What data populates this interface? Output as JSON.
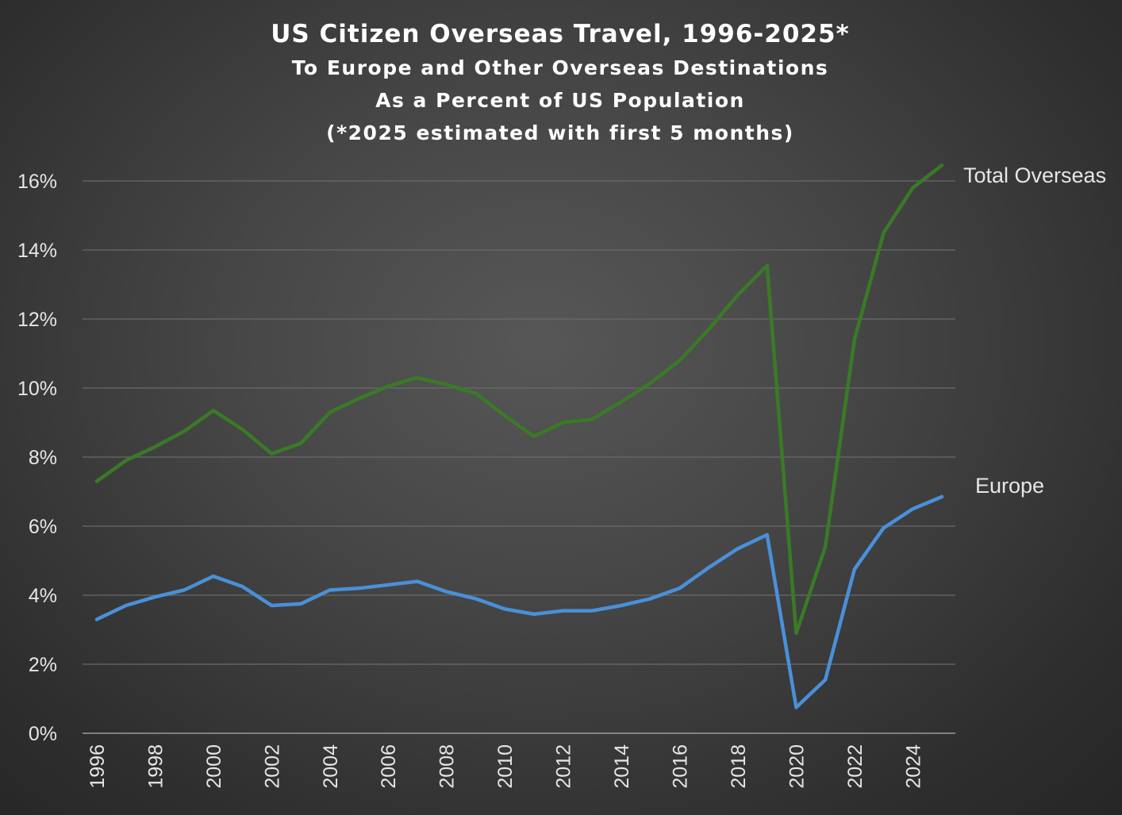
{
  "chart_data": {
    "type": "line",
    "title": "US Citizen Overseas Travel, 1996-2025*",
    "subtitle": [
      "To Europe and Other Overseas Destinations",
      "As a Percent of US Population",
      "(*2025 estimated with first 5 months)"
    ],
    "xlabel": "",
    "ylabel": "",
    "x": [
      1996,
      1997,
      1998,
      1999,
      2000,
      2001,
      2002,
      2003,
      2004,
      2005,
      2006,
      2007,
      2008,
      2009,
      2010,
      2011,
      2012,
      2013,
      2014,
      2015,
      2016,
      2017,
      2018,
      2019,
      2020,
      2021,
      2022,
      2023,
      2024,
      2025
    ],
    "x_tick_labels": [
      "1996",
      "1998",
      "2000",
      "2002",
      "2004",
      "2006",
      "2008",
      "2010",
      "2012",
      "2014",
      "2016",
      "2018",
      "2020",
      "2022",
      "2024"
    ],
    "y_tick_labels": [
      "0%",
      "2%",
      "4%",
      "6%",
      "8%",
      "10%",
      "12%",
      "14%",
      "16%"
    ],
    "ylim": [
      0,
      16
    ],
    "y_unit": "%",
    "grid": true,
    "legend": "direct labels at line ends",
    "series": [
      {
        "name": "Total Overseas",
        "color": "#3a7a26",
        "values": [
          7.3,
          7.9,
          8.3,
          8.75,
          9.35,
          8.8,
          8.1,
          8.4,
          9.3,
          9.7,
          10.05,
          10.3,
          10.1,
          9.85,
          9.2,
          8.6,
          9.0,
          9.1,
          9.6,
          10.15,
          10.8,
          11.7,
          12.7,
          13.55,
          2.9,
          5.4,
          11.4,
          14.5,
          15.8,
          16.45
        ]
      },
      {
        "name": "Europe",
        "color": "#4a90d9",
        "values": [
          3.3,
          3.7,
          3.95,
          4.15,
          4.55,
          4.25,
          3.7,
          3.75,
          4.15,
          4.2,
          4.3,
          4.4,
          4.1,
          3.9,
          3.6,
          3.45,
          3.55,
          3.55,
          3.7,
          3.9,
          4.2,
          4.8,
          5.35,
          5.75,
          0.75,
          1.55,
          4.75,
          5.95,
          6.5,
          6.85
        ]
      }
    ]
  }
}
